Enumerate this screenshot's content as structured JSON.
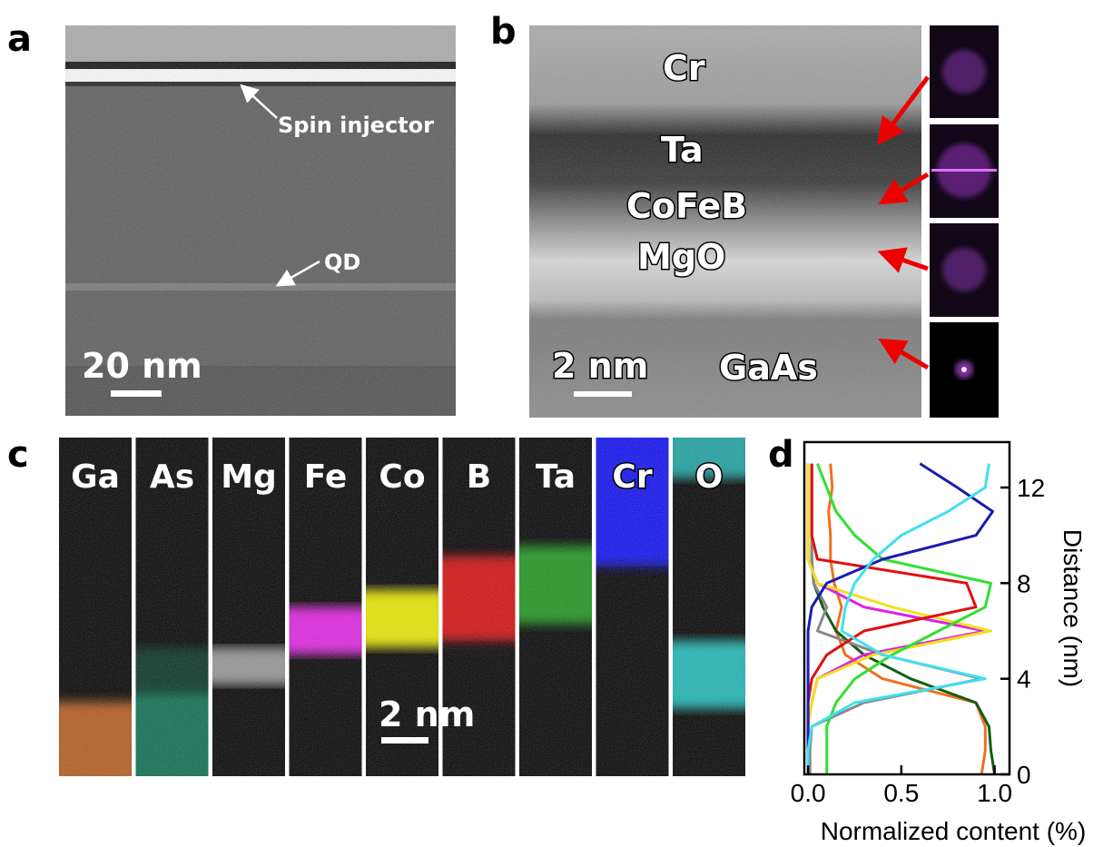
{
  "panel_a": {
    "label": "a",
    "annotations": [
      "Spin injector",
      "QD"
    ],
    "scale_bar": "20 nm"
  },
  "panel_b": {
    "label": "b",
    "layers": [
      "Cr",
      "Ta",
      "CoFeB",
      "MgO",
      "GaAs"
    ],
    "scale_bar": "2 nm"
  },
  "panel_c": {
    "label": "c",
    "scale_bar": "2 nm",
    "maps": [
      {
        "element": "Ga",
        "color": "#c8641e"
      },
      {
        "element": "As",
        "color": "#0f8a64"
      },
      {
        "element": "Mg",
        "color": "#bbbbbb"
      },
      {
        "element": "Fe",
        "color": "#e020e0"
      },
      {
        "element": "Co",
        "color": "#e6e600"
      },
      {
        "element": "B",
        "color": "#e01010"
      },
      {
        "element": "Ta",
        "color": "#20b020"
      },
      {
        "element": "Cr",
        "color": "#1010f0"
      },
      {
        "element": "O",
        "color": "#20c8c8"
      }
    ]
  },
  "chart_data": {
    "type": "line",
    "panel_label": "d",
    "orientation": "horizontal",
    "x_label": "Distance (nm)",
    "y_label": "Normalized content (%)",
    "x": [
      0,
      1,
      2,
      3,
      4,
      5,
      6,
      7,
      8,
      9,
      10,
      11,
      12,
      13
    ],
    "xlim": [
      0,
      13.9
    ],
    "xticks": [
      0,
      4,
      8,
      12
    ],
    "ylim": [
      -0.02,
      1.08
    ],
    "yticks": [
      {
        "value": 0,
        "label": "0.0"
      },
      0.5,
      {
        "value": 1,
        "label": "1.0"
      }
    ],
    "series": [
      {
        "color": "#f07020",
        "values": [
          0.93,
          0.95,
          0.95,
          0.9,
          0.4,
          0.2,
          0.15,
          0.18,
          0.14,
          0.12,
          0.12,
          0.11,
          0.13,
          0.12
        ]
      },
      {
        "color": "#106010",
        "values": [
          1.0,
          0.98,
          0.97,
          0.9,
          0.55,
          0.3,
          0.15,
          0.08,
          0.03,
          0.02,
          0.02,
          0.02,
          0.02,
          0.02
        ]
      },
      {
        "color": "#888888",
        "values": [
          0.01,
          0.01,
          0.02,
          0.3,
          0.93,
          0.4,
          0.05,
          0.1,
          0.03,
          0.02,
          0.02,
          0.02,
          0.02,
          0.02
        ]
      },
      {
        "color": "#e020e0",
        "values": [
          0,
          0,
          0,
          0.02,
          0.05,
          0.3,
          0.95,
          0.3,
          0.05,
          0,
          0,
          0,
          0,
          0
        ]
      },
      {
        "color": "#f0e020",
        "values": [
          0,
          0,
          0,
          0.02,
          0.05,
          0.35,
          0.98,
          0.45,
          0.05,
          0,
          0,
          0,
          0,
          0
        ]
      },
      {
        "color": "#e01010",
        "values": [
          0,
          0,
          0,
          0,
          0.02,
          0.1,
          0.3,
          0.9,
          0.85,
          0.05,
          0.02,
          0.02,
          0.02,
          0.02
        ]
      },
      {
        "color": "#30e030",
        "values": [
          0.1,
          0.1,
          0.1,
          0.15,
          0.25,
          0.45,
          0.7,
          0.95,
          0.98,
          0.4,
          0.25,
          0.15,
          0.1,
          0.05
        ]
      },
      {
        "color": "#1a1ab4",
        "values": [
          0,
          0,
          0,
          0,
          0,
          0,
          0,
          0.02,
          0.1,
          0.4,
          0.9,
          0.99,
          0.8,
          0.6
        ]
      },
      {
        "color": "#40e0f0",
        "values": [
          0,
          0,
          0.02,
          0.25,
          0.95,
          0.4,
          0.18,
          0.2,
          0.25,
          0.35,
          0.5,
          0.75,
          0.95,
          0.97
        ]
      }
    ]
  }
}
